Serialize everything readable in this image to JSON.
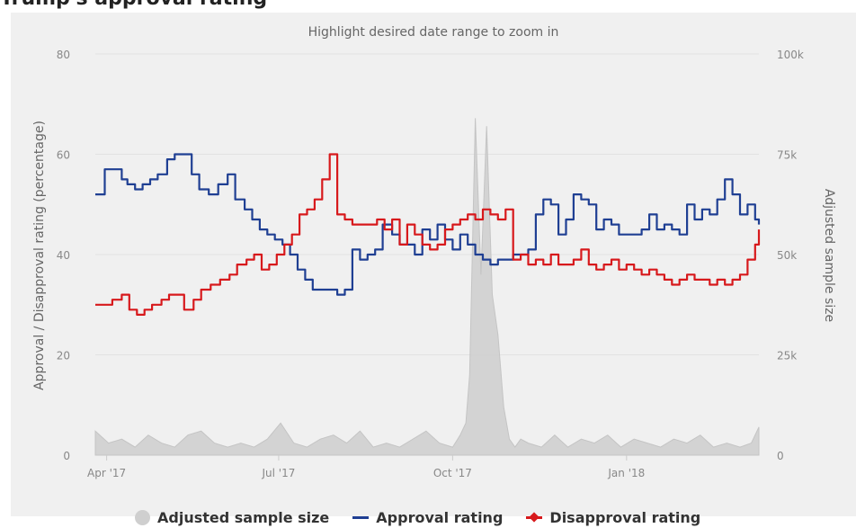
{
  "page": {
    "title": "Trump's approval rating"
  },
  "chart_data": {
    "type": "line",
    "title": "Highlight desired date range to zoom in",
    "y_left_label": "Approval / Disapproval rating (percentage)",
    "y_right_label": "Adjusted sample size",
    "y_left_ticks": [
      "0",
      "20",
      "40",
      "60",
      "80"
    ],
    "y_right_ticks": [
      "0",
      "25k",
      "50k",
      "75k",
      "100k"
    ],
    "x_ticks": [
      "Apr '17",
      "Jul '17",
      "Oct '17",
      "Jan '18"
    ],
    "x_range": [
      "2017-03-26",
      "2018-03-12"
    ],
    "ylim_left": [
      0,
      80
    ],
    "ylim_right": [
      0,
      100000
    ],
    "grid": true,
    "legend_position": "bottom",
    "colors": {
      "area": "#cfcfcf",
      "approval": "#1f3f93",
      "disapproval": "#d7191c"
    },
    "series": [
      {
        "name": "Adjusted sample size",
        "type": "area",
        "axis": "right",
        "color": "#cfcfcf",
        "x": [
          "2017-03-26",
          "2017-04-02",
          "2017-04-09",
          "2017-04-16",
          "2017-04-23",
          "2017-04-30",
          "2017-05-07",
          "2017-05-14",
          "2017-05-21",
          "2017-05-28",
          "2017-06-04",
          "2017-06-11",
          "2017-06-18",
          "2017-06-25",
          "2017-07-02",
          "2017-07-09",
          "2017-07-16",
          "2017-07-23",
          "2017-07-30",
          "2017-08-06",
          "2017-08-13",
          "2017-08-20",
          "2017-08-27",
          "2017-09-03",
          "2017-09-10",
          "2017-09-17",
          "2017-09-24",
          "2017-10-01",
          "2017-10-05",
          "2017-10-08",
          "2017-10-10",
          "2017-10-13",
          "2017-10-16",
          "2017-10-19",
          "2017-10-22",
          "2017-10-25",
          "2017-10-28",
          "2017-10-31",
          "2017-11-03",
          "2017-11-06",
          "2017-11-10",
          "2017-11-17",
          "2017-11-24",
          "2017-12-01",
          "2017-12-08",
          "2017-12-15",
          "2017-12-22",
          "2017-12-29",
          "2018-01-05",
          "2018-01-12",
          "2018-01-19",
          "2018-01-26",
          "2018-02-02",
          "2018-02-09",
          "2018-02-16",
          "2018-02-23",
          "2018-03-02",
          "2018-03-08",
          "2018-03-12"
        ],
        "values": [
          6000,
          3000,
          4000,
          2000,
          5000,
          3000,
          2000,
          5000,
          6000,
          3000,
          2000,
          3000,
          2000,
          4000,
          8000,
          3000,
          2000,
          4000,
          5000,
          3000,
          6000,
          2000,
          3000,
          2000,
          4000,
          6000,
          3000,
          2000,
          5000,
          8000,
          20000,
          84000,
          45000,
          82000,
          40000,
          30000,
          12000,
          4000,
          2000,
          4000,
          3000,
          2000,
          5000,
          2000,
          4000,
          3000,
          5000,
          2000,
          4000,
          3000,
          2000,
          4000,
          3000,
          5000,
          2000,
          3000,
          2000,
          3000,
          7000
        ]
      },
      {
        "name": "Approval rating",
        "type": "line",
        "axis": "left",
        "color": "#1f3f93",
        "x": [
          "2017-03-26",
          "2017-03-29",
          "2017-03-31",
          "2017-04-05",
          "2017-04-09",
          "2017-04-12",
          "2017-04-16",
          "2017-04-20",
          "2017-04-24",
          "2017-04-28",
          "2017-05-03",
          "2017-05-07",
          "2017-05-12",
          "2017-05-16",
          "2017-05-20",
          "2017-05-25",
          "2017-05-30",
          "2017-06-04",
          "2017-06-08",
          "2017-06-13",
          "2017-06-17",
          "2017-06-21",
          "2017-06-25",
          "2017-06-29",
          "2017-07-03",
          "2017-07-07",
          "2017-07-11",
          "2017-07-15",
          "2017-07-19",
          "2017-07-23",
          "2017-07-27",
          "2017-08-01",
          "2017-08-05",
          "2017-08-09",
          "2017-08-13",
          "2017-08-17",
          "2017-08-21",
          "2017-08-25",
          "2017-08-30",
          "2017-09-03",
          "2017-09-07",
          "2017-09-11",
          "2017-09-15",
          "2017-09-19",
          "2017-09-23",
          "2017-09-27",
          "2017-10-01",
          "2017-10-05",
          "2017-10-09",
          "2017-10-13",
          "2017-10-17",
          "2017-10-21",
          "2017-10-25",
          "2017-10-29",
          "2017-11-02",
          "2017-11-06",
          "2017-11-10",
          "2017-11-14",
          "2017-11-18",
          "2017-11-22",
          "2017-11-26",
          "2017-11-30",
          "2017-12-04",
          "2017-12-08",
          "2017-12-12",
          "2017-12-16",
          "2017-12-20",
          "2017-12-24",
          "2017-12-28",
          "2018-01-01",
          "2018-01-05",
          "2018-01-09",
          "2018-01-13",
          "2018-01-17",
          "2018-01-21",
          "2018-01-25",
          "2018-01-29",
          "2018-02-02",
          "2018-02-06",
          "2018-02-10",
          "2018-02-14",
          "2018-02-18",
          "2018-02-22",
          "2018-02-26",
          "2018-03-02",
          "2018-03-06",
          "2018-03-10",
          "2018-03-12"
        ],
        "values": [
          52,
          52,
          57,
          57,
          55,
          54,
          53,
          54,
          55,
          56,
          59,
          60,
          60,
          56,
          53,
          52,
          54,
          56,
          51,
          49,
          47,
          45,
          44,
          43,
          42,
          40,
          37,
          35,
          33,
          33,
          33,
          32,
          33,
          41,
          39,
          40,
          41,
          46,
          44,
          42,
          42,
          40,
          45,
          43,
          46,
          43,
          41,
          44,
          42,
          40,
          39,
          38,
          39,
          39,
          40,
          40,
          41,
          48,
          51,
          50,
          44,
          47,
          52,
          51,
          50,
          45,
          47,
          46,
          44,
          44,
          44,
          45,
          48,
          45,
          46,
          45,
          44,
          50,
          47,
          49,
          48,
          51,
          55,
          52,
          48,
          50,
          47,
          46
        ]
      },
      {
        "name": "Disapproval rating",
        "type": "line",
        "axis": "left",
        "color": "#d7191c",
        "x": [
          "2017-03-26",
          "2017-03-30",
          "2017-04-04",
          "2017-04-09",
          "2017-04-13",
          "2017-04-17",
          "2017-04-21",
          "2017-04-25",
          "2017-04-30",
          "2017-05-04",
          "2017-05-08",
          "2017-05-12",
          "2017-05-17",
          "2017-05-21",
          "2017-05-26",
          "2017-05-31",
          "2017-06-05",
          "2017-06-09",
          "2017-06-14",
          "2017-06-18",
          "2017-06-22",
          "2017-06-26",
          "2017-06-30",
          "2017-07-04",
          "2017-07-08",
          "2017-07-12",
          "2017-07-16",
          "2017-07-20",
          "2017-07-24",
          "2017-07-28",
          "2017-08-01",
          "2017-08-05",
          "2017-08-09",
          "2017-08-13",
          "2017-08-18",
          "2017-08-22",
          "2017-08-26",
          "2017-08-30",
          "2017-09-03",
          "2017-09-07",
          "2017-09-11",
          "2017-09-15",
          "2017-09-19",
          "2017-09-23",
          "2017-09-27",
          "2017-10-01",
          "2017-10-05",
          "2017-10-09",
          "2017-10-13",
          "2017-10-17",
          "2017-10-21",
          "2017-10-25",
          "2017-10-29",
          "2017-11-02",
          "2017-11-06",
          "2017-11-10",
          "2017-11-14",
          "2017-11-18",
          "2017-11-22",
          "2017-11-26",
          "2017-11-30",
          "2017-12-04",
          "2017-12-08",
          "2017-12-12",
          "2017-12-16",
          "2017-12-20",
          "2017-12-24",
          "2017-12-28",
          "2018-01-01",
          "2018-01-05",
          "2018-01-09",
          "2018-01-13",
          "2018-01-17",
          "2018-01-21",
          "2018-01-25",
          "2018-01-29",
          "2018-02-02",
          "2018-02-06",
          "2018-02-10",
          "2018-02-14",
          "2018-02-18",
          "2018-02-22",
          "2018-02-26",
          "2018-03-02",
          "2018-03-06",
          "2018-03-10",
          "2018-03-12"
        ],
        "values": [
          30,
          30,
          31,
          32,
          29,
          28,
          29,
          30,
          31,
          32,
          32,
          29,
          31,
          33,
          34,
          35,
          36,
          38,
          39,
          40,
          37,
          38,
          40,
          42,
          44,
          48,
          49,
          51,
          55,
          60,
          48,
          47,
          46,
          46,
          46,
          47,
          45,
          47,
          42,
          46,
          44,
          42,
          41,
          42,
          45,
          46,
          47,
          48,
          47,
          49,
          48,
          47,
          49,
          39,
          40,
          38,
          39,
          38,
          40,
          38,
          38,
          39,
          41,
          38,
          37,
          38,
          39,
          37,
          38,
          37,
          36,
          37,
          36,
          35,
          34,
          35,
          36,
          35,
          35,
          34,
          35,
          34,
          35,
          36,
          39,
          42,
          45
        ]
      }
    ]
  }
}
